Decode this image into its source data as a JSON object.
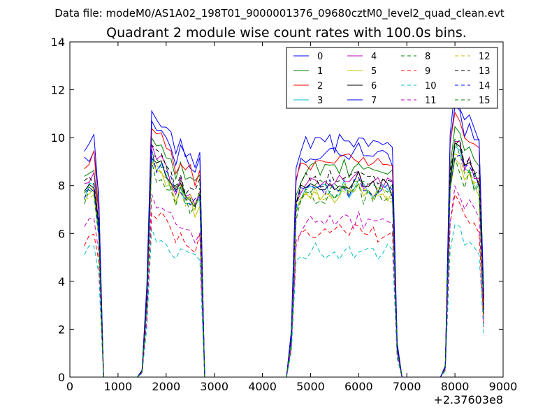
{
  "figure": {
    "suptitle": "Data file: modeM0/AS1A02_198T01_9000001376_09680cztM0_level2_quad_clean.evt"
  },
  "chart_data": {
    "type": "line",
    "title": "Quadrant 2 module wise count rates with 100.0s bins.",
    "xlabel": "",
    "ylabel": "",
    "x_offset_label": "+2.37603e8",
    "xlim": [
      0,
      9000
    ],
    "ylim": [
      0,
      14
    ],
    "xticks": [
      0,
      1000,
      2000,
      3000,
      4000,
      5000,
      6000,
      7000,
      8000,
      9000
    ],
    "yticks": [
      0,
      2,
      4,
      6,
      8,
      10,
      12,
      14
    ],
    "legend_position": "top-right",
    "legend_columns": 4,
    "segments": [
      {
        "x": [
          300,
          400,
          500,
          600,
          700,
          800,
          900,
          1000,
          1100,
          1200,
          1300,
          1400,
          1500
        ],
        "envelope": [
          0.97,
          1.0,
          1.02,
          0.8,
          0,
          0,
          0,
          0,
          0,
          0,
          0,
          0,
          0.03
        ]
      },
      {
        "x": [
          1600,
          1700,
          1800,
          1900,
          2000,
          2100,
          2200,
          2300,
          2400,
          2500,
          2600,
          2700,
          2800
        ],
        "envelope": [
          0.4,
          1.18,
          1.12,
          1.1,
          1.08,
          1.03,
          0.98,
          1.02,
          0.97,
          0.95,
          0.92,
          0.98,
          0
        ]
      },
      {
        "x": [
          2900,
          3000,
          3100,
          3200,
          3300,
          3400,
          3500,
          3600,
          3700,
          3800,
          3900,
          4000,
          4100,
          4200,
          4300,
          4400,
          4500
        ],
        "envelope": [
          0,
          0,
          0,
          0,
          0,
          0,
          0,
          0,
          0,
          0,
          0,
          0,
          0,
          0,
          0,
          0,
          0
        ]
      },
      {
        "x": [
          4600,
          4700,
          4800,
          4900,
          5000,
          5100,
          5200,
          5300,
          5400,
          5500,
          5600,
          5700,
          5800,
          5900,
          6000,
          6100,
          6200,
          6300,
          6400,
          6500,
          6600,
          6700,
          6800
        ],
        "envelope": [
          0.2,
          0.9,
          0.97,
          1.0,
          1.0,
          1.01,
          1.0,
          1.0,
          1.02,
          1.0,
          1.01,
          1.03,
          1.0,
          1.02,
          1.03,
          1.01,
          1.02,
          1.0,
          0.99,
          1.01,
          1.0,
          0.98,
          0.15
        ]
      },
      {
        "x": [
          6900,
          7000,
          7100,
          7200,
          7300,
          7400,
          7500,
          7600,
          7700
        ],
        "envelope": [
          0,
          0,
          0,
          0,
          0,
          0,
          0,
          0,
          0
        ]
      },
      {
        "x": [
          7800,
          7900,
          8000,
          8100,
          8200,
          8300,
          8400,
          8500,
          8600
        ],
        "envelope": [
          0.05,
          1.05,
          1.22,
          1.18,
          1.1,
          1.12,
          1.05,
          1.03,
          0.35
        ]
      }
    ],
    "series": [
      {
        "name": "0",
        "level": 9.3,
        "color": "#0000ff",
        "dash": "solid"
      },
      {
        "name": "1",
        "level": 8.6,
        "color": "#008000",
        "dash": "solid"
      },
      {
        "name": "2",
        "level": 9.0,
        "color": "#ff0000",
        "dash": "solid"
      },
      {
        "name": "3",
        "level": 7.8,
        "color": "#00bfbf",
        "dash": "solid"
      },
      {
        "name": "4",
        "level": 8.1,
        "color": "#bf00bf",
        "dash": "solid"
      },
      {
        "name": "5",
        "level": 7.6,
        "color": "#bfbf00",
        "dash": "solid"
      },
      {
        "name": "6",
        "level": 8.0,
        "color": "#000000",
        "dash": "solid"
      },
      {
        "name": "7",
        "level": 9.7,
        "color": "#0000ff",
        "dash": "solid"
      },
      {
        "name": "8",
        "level": 7.9,
        "color": "#008000",
        "dash": "dashed"
      },
      {
        "name": "9",
        "level": 6.0,
        "color": "#ff0000",
        "dash": "dashed"
      },
      {
        "name": "10",
        "level": 5.2,
        "color": "#00bfbf",
        "dash": "dashed"
      },
      {
        "name": "11",
        "level": 6.4,
        "color": "#bf00bf",
        "dash": "dashed"
      },
      {
        "name": "12",
        "level": 7.7,
        "color": "#bfbf00",
        "dash": "dashed"
      },
      {
        "name": "13",
        "level": 8.2,
        "color": "#000000",
        "dash": "dashed"
      },
      {
        "name": "14",
        "level": 7.8,
        "color": "#0000ff",
        "dash": "dashed"
      },
      {
        "name": "15",
        "level": 7.5,
        "color": "#008000",
        "dash": "dashed"
      }
    ]
  }
}
